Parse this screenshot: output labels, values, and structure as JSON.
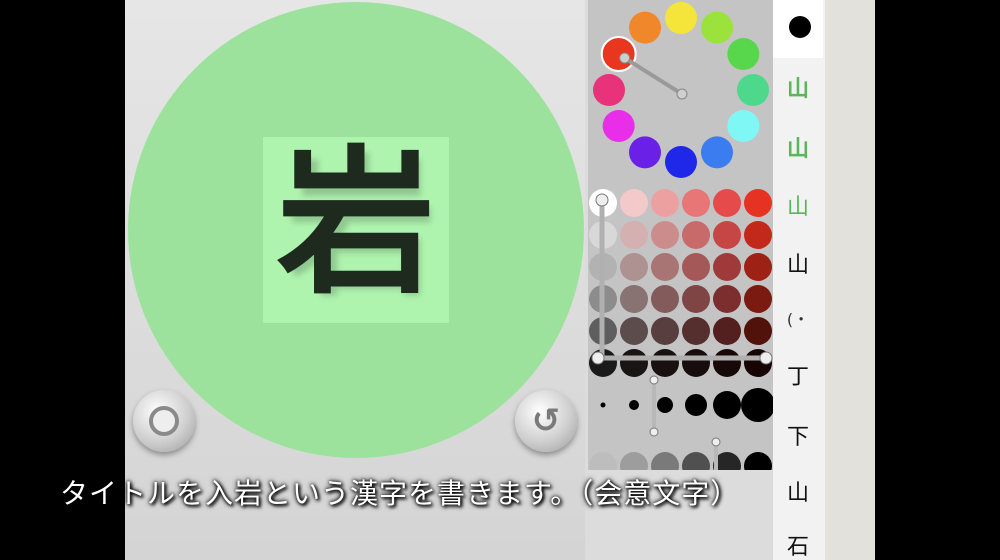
{
  "canvas": {
    "kanji": "岩",
    "circle_color": "#9ce29c",
    "box_color": "#aef3ae",
    "ink_color": "#1d2a1d"
  },
  "controls": {
    "stop_icon": "stop-icon",
    "undo_icon": "undo-icon",
    "undo_glyph": "↺"
  },
  "palette": {
    "hue_wheel": [
      "#f5e53a",
      "#9be23c",
      "#58d64c",
      "#4ed88c",
      "#7ff7f5",
      "#3b7df0",
      "#1f27e8",
      "#6b20e8",
      "#e82ee8",
      "#e8337a",
      "#e8361f",
      "#f0872a"
    ],
    "grid_columns": 6,
    "grid": [
      [
        "#ffffff",
        "#f4c9c9",
        "#eda0a0",
        "#e87676",
        "#e64b4b",
        "#e63222"
      ],
      [
        "#d8d8d8",
        "#d4b0b0",
        "#cd8c8c",
        "#c96a6a",
        "#c64646",
        "#c3291b"
      ],
      [
        "#b2b2b2",
        "#ae9191",
        "#a87474",
        "#a45858",
        "#a03a3a",
        "#9e2116"
      ],
      [
        "#8c8c8c",
        "#887272",
        "#835b5b",
        "#7f4444",
        "#7c2d2d",
        "#7a1a11"
      ],
      [
        "#5e5e5e",
        "#5c4c4c",
        "#583e3e",
        "#552e2e",
        "#531f1f",
        "#52120c"
      ],
      [
        "#1a1a1a",
        "#1a1515",
        "#191111",
        "#180d0d",
        "#180909",
        "#170505"
      ]
    ],
    "brush_sizes": [
      3,
      8,
      14,
      20,
      26,
      32
    ],
    "opacity_levels": [
      "#bdbdbd",
      "#9d9d9d",
      "#7a7a7a",
      "#505050",
      "#262626",
      "#000000"
    ]
  },
  "strokes": {
    "items": [
      "山",
      "山",
      "山",
      "山",
      "(・",
      "丁",
      "下",
      "山",
      "石"
    ]
  },
  "caption": {
    "text": "タイトルを入岩という漢字を書きます。（会意文字）"
  }
}
